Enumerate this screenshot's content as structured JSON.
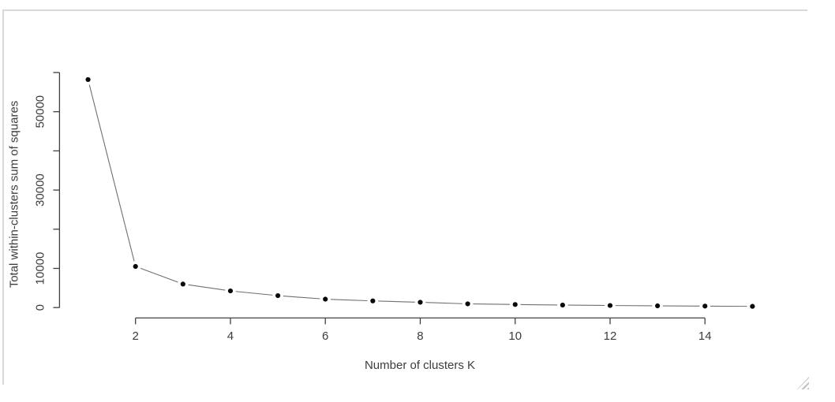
{
  "icons": {
    "resize_grip": "diagonal-resize-grip"
  },
  "chart_data": {
    "type": "line",
    "style": "R base plot type='b' (points joined by shortened segments)",
    "title": "",
    "xlabel": "Number of clusters K",
    "ylabel": "Total within-clusters sum of squares",
    "x": [
      1,
      2,
      3,
      4,
      5,
      6,
      7,
      8,
      9,
      10,
      11,
      12,
      13,
      14,
      15
    ],
    "values": [
      58200,
      10500,
      6000,
      4250,
      3050,
      2150,
      1700,
      1350,
      950,
      780,
      640,
      530,
      440,
      370,
      310
    ],
    "series_name": "Total within-clusters sum of squares",
    "xlim": [
      1,
      15
    ],
    "ylim": [
      0,
      60000
    ],
    "x_ticks": [
      2,
      4,
      6,
      8,
      10,
      12,
      14
    ],
    "x_tick_labels": [
      "2",
      "4",
      "6",
      "8",
      "10",
      "12",
      "14"
    ],
    "y_ticks": [
      0,
      10000,
      20000,
      30000,
      40000,
      50000,
      60000
    ],
    "y_tick_labels": [
      "0",
      "10000",
      "",
      "30000",
      "",
      "50000",
      ""
    ],
    "grid": false,
    "legend": "none",
    "marker": "filled-circle",
    "colors": {
      "point": "#0a0a0a",
      "line": "#6f6f6f",
      "axis": "#404040",
      "text": "#3c3c3c",
      "panel_border": "#d9d9d9"
    }
  }
}
